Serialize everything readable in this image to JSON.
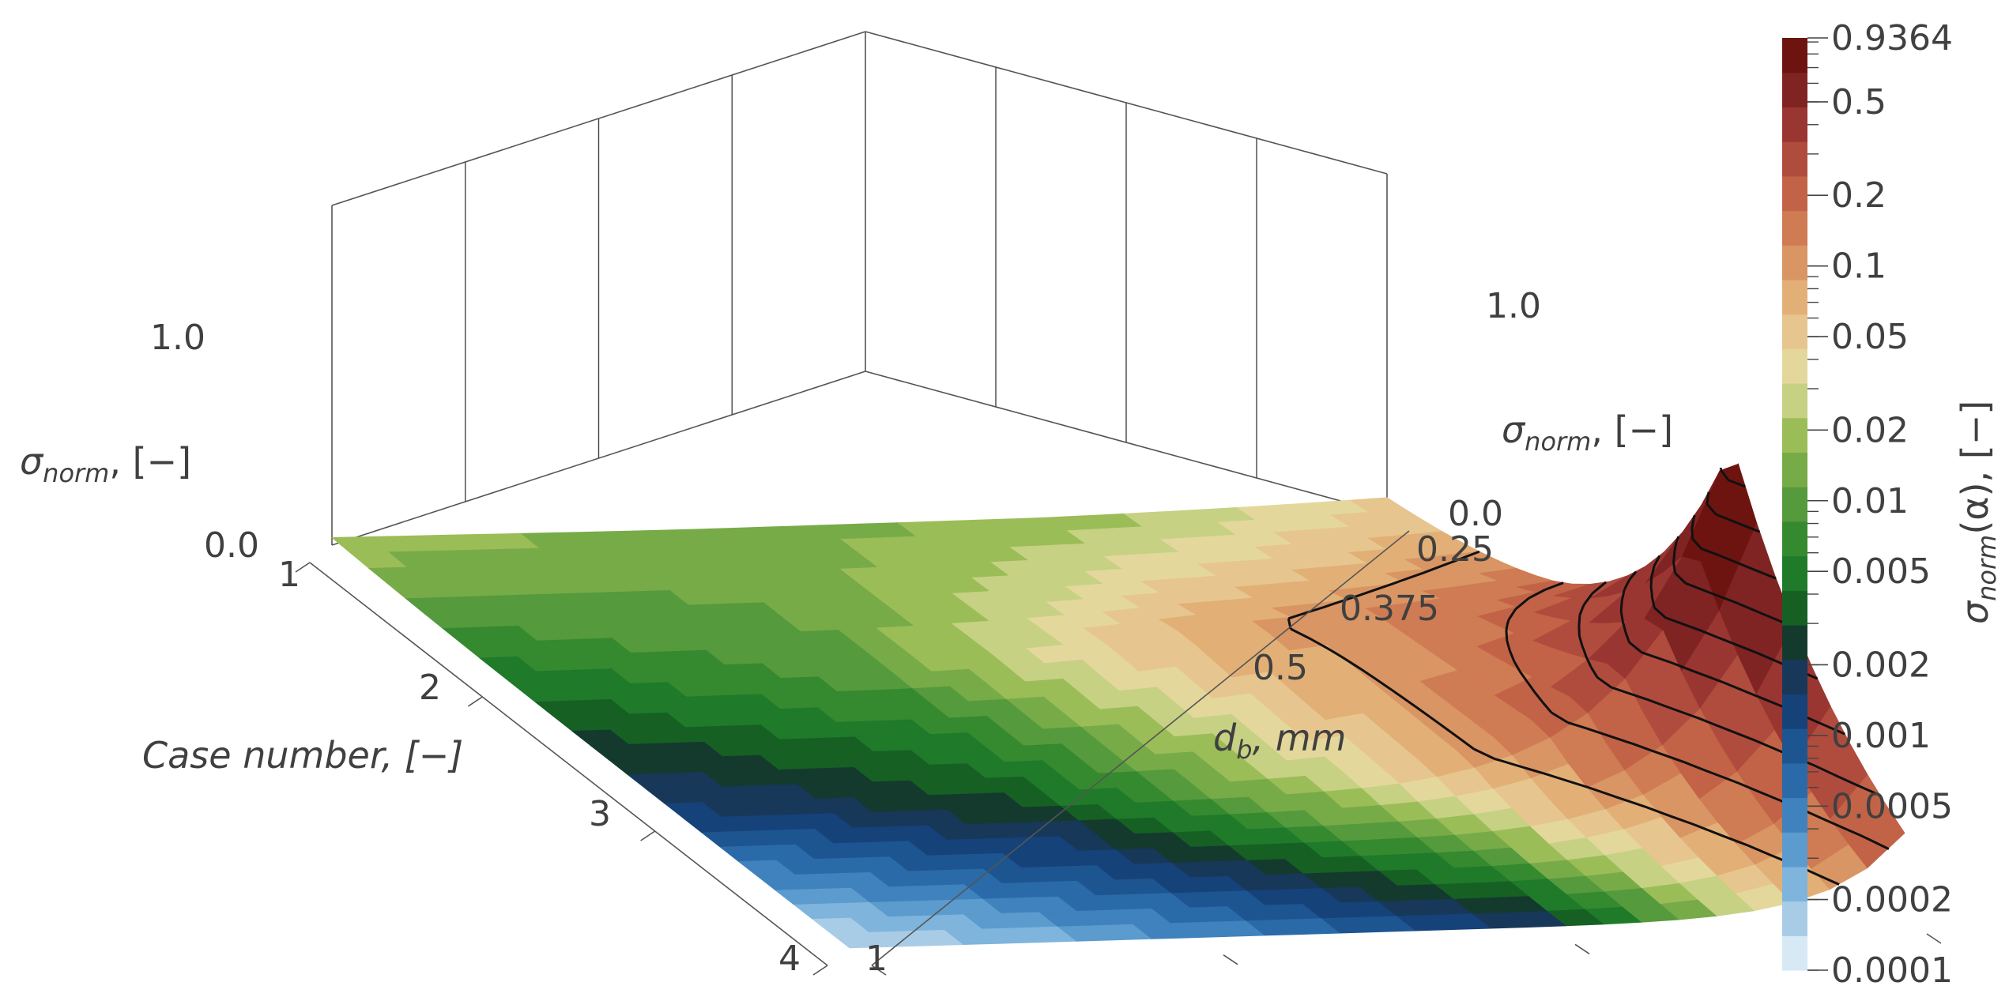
{
  "chart_data": {
    "type": "surface3d",
    "description_axes": {
      "x": {
        "label_main": "Case number, [−]",
        "ticks": [
          "1",
          "2",
          "3",
          "4"
        ]
      },
      "y": {
        "label_main": "d",
        "label_sub": "b",
        "label_unit": ", mm",
        "ticks": [
          "1",
          "0.5",
          "0.375",
          "0.25"
        ]
      },
      "z": {
        "label_main": "σ",
        "label_sub": "norm",
        "label_unit": ", [−]",
        "ticks": [
          "0.0",
          "1.0"
        ]
      }
    },
    "colorbar": {
      "title_main": "σ",
      "title_sub": "norm",
      "title_unit": "(α), [−]",
      "scale": "log",
      "range": [
        0.0001,
        0.9364
      ],
      "labels": [
        "0.9364",
        "0.5",
        "0.2",
        "0.1",
        "0.05",
        "0.02",
        "0.01",
        "0.005",
        "0.002",
        "0.001",
        "0.0005",
        "0.0002",
        "0.0001"
      ],
      "label_values": [
        0.9364,
        0.5,
        0.2,
        0.1,
        0.05,
        0.02,
        0.01,
        0.005,
        0.002,
        0.001,
        0.0005,
        0.0002,
        0.0001
      ],
      "colors": [
        "#d6e9f5",
        "#a9cce6",
        "#7fb4dc",
        "#5b9bcd",
        "#3f82bd",
        "#2a6aa8",
        "#1d5591",
        "#16427a",
        "#173859",
        "#143a2e",
        "#166024",
        "#1f7a2a",
        "#35892f",
        "#559a3c",
        "#77ab48",
        "#9bbd57",
        "#c6d184",
        "#e4d79c",
        "#e6c68e",
        "#e2b077",
        "#d99564",
        "#cf7b53",
        "#c26347",
        "#b04c3d",
        "#9a3631",
        "#802323",
        "#6e1410"
      ]
    },
    "grid": {
      "x_case": [
        1,
        2,
        3,
        4
      ],
      "y_db": [
        1,
        0.5,
        0.375,
        0.25
      ],
      "z_sigma_norm": [
        [
          0.021,
          0.0135,
          0.0165,
          0.044
        ],
        [
          0.0048,
          0.0105,
          0.08,
          0.18
        ],
        [
          0.0013,
          0.003,
          0.036,
          0.936
        ],
        [
          0.00012,
          0.0004,
          0.0017,
          0.23
        ]
      ]
    }
  }
}
